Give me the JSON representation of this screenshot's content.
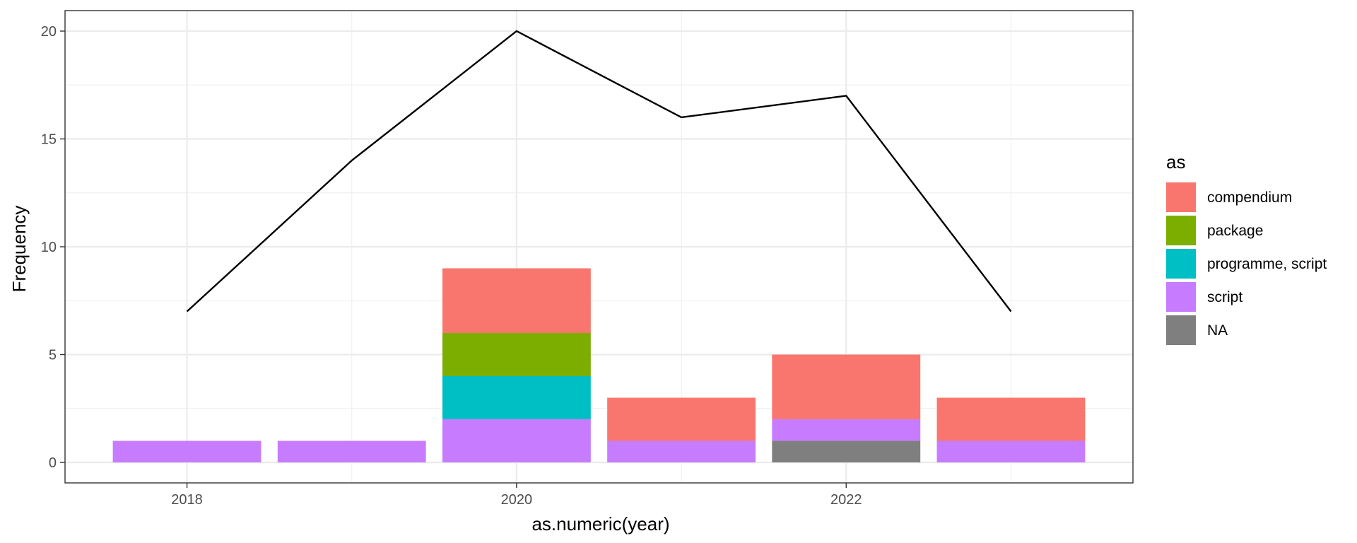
{
  "chart_data": {
    "type": "bar",
    "xlabel": "as.numeric(year)",
    "ylabel": "Frequency",
    "xlim": [
      2017.26,
      2023.74
    ],
    "ylim": [
      -0.95,
      20.95
    ],
    "x_ticks": [
      2018,
      2020,
      2022
    ],
    "y_ticks": [
      0,
      5,
      10,
      15,
      20
    ],
    "grid": true,
    "legend": {
      "title": "as",
      "position": "right",
      "entries": [
        "compendium",
        "package",
        "programme, script",
        "script",
        "NA"
      ]
    },
    "colors": {
      "compendium": "#F8766D",
      "package": "#7CAE00",
      "programme, script": "#00BFC4",
      "script": "#C77CFF",
      "NA": "#7F7F7F",
      "line": "#000000"
    },
    "bar_width": 0.9,
    "categories": [
      2018,
      2019,
      2020,
      2021,
      2022,
      2023
    ],
    "series": [
      {
        "name": "NA",
        "values": [
          0,
          0,
          0,
          0,
          1,
          0
        ]
      },
      {
        "name": "script",
        "values": [
          1,
          1,
          2,
          1,
          1,
          1
        ]
      },
      {
        "name": "programme, script",
        "values": [
          0,
          0,
          2,
          0,
          0,
          0
        ]
      },
      {
        "name": "package",
        "values": [
          0,
          0,
          2,
          0,
          0,
          0
        ]
      },
      {
        "name": "compendium",
        "values": [
          0,
          0,
          3,
          2,
          3,
          2
        ]
      }
    ],
    "line": {
      "x": [
        2018,
        2019,
        2020,
        2021,
        2022,
        2023
      ],
      "y": [
        7,
        14,
        20,
        16,
        17,
        7
      ]
    }
  }
}
